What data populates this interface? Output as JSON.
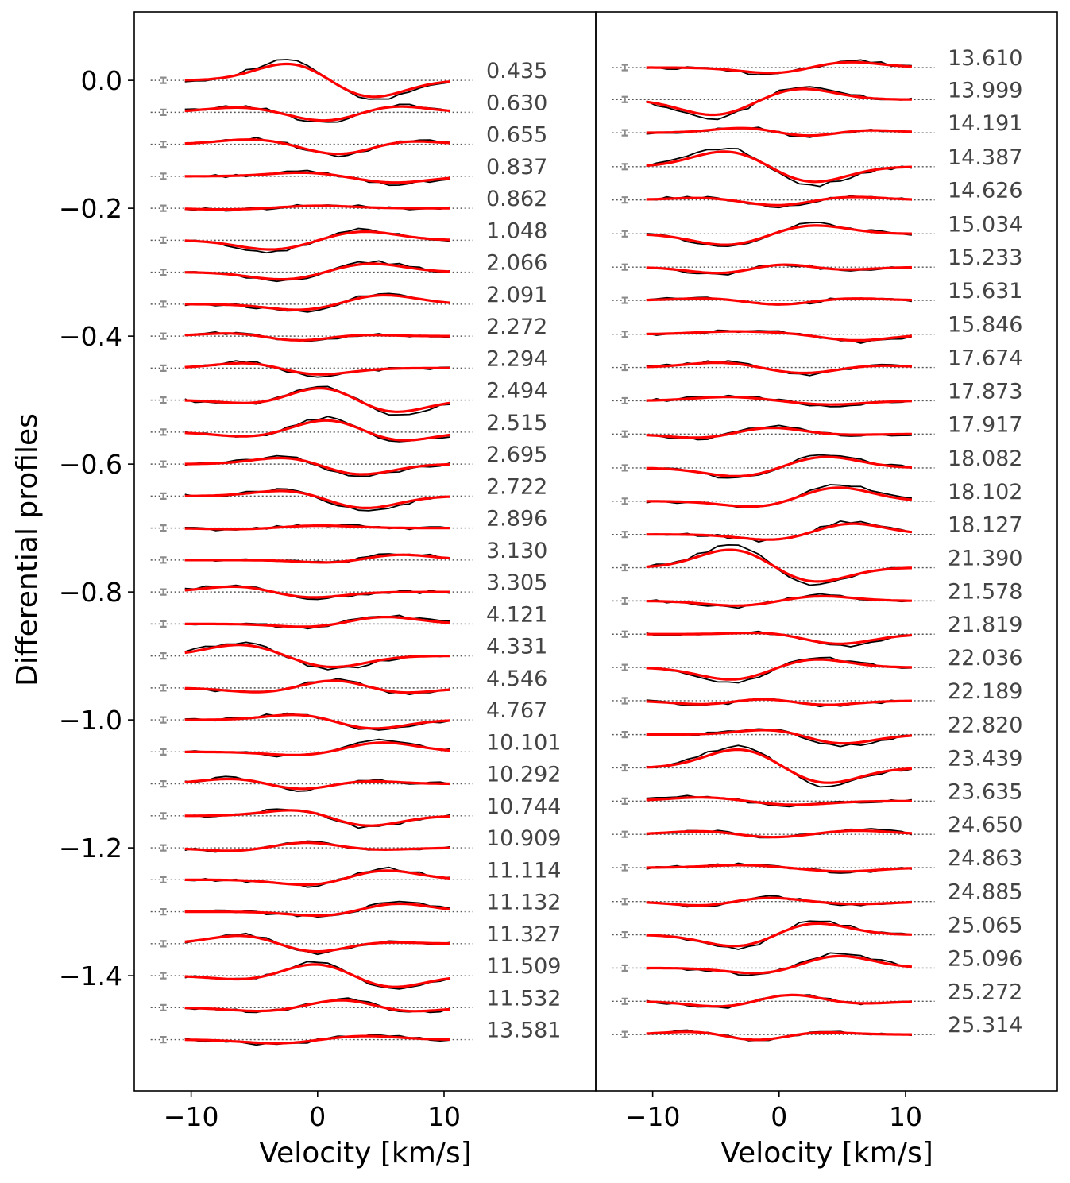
{
  "chart_data": {
    "type": "line",
    "ylabel": "Differential profiles",
    "xlabel": "Velocity [km/s]",
    "xlim": [
      -14.5,
      22
    ],
    "ylim": [
      -1.58,
      0.107
    ],
    "xticks": [
      -10,
      0,
      10
    ],
    "xtick_labels": [
      "−10",
      "0",
      "10"
    ],
    "yticks": [
      0.0,
      -0.2,
      -0.4,
      -0.6,
      -0.8,
      -1.0,
      -1.2,
      -1.4
    ],
    "ytick_labels": [
      "0.0",
      "−0.2",
      "−0.4",
      "−0.6",
      "−0.8",
      "−1.0",
      "−1.2",
      "−1.4"
    ],
    "offset_step": -0.05,
    "velocity_range": [
      -10.5,
      10.5
    ],
    "series_colors": {
      "observed": "#000000",
      "model": "#ff0000",
      "baseline": "#555555",
      "errorbar": "#8c8c8c"
    },
    "model_params": {
      "gaussian_width_kms": 2.8
    },
    "panels": [
      {
        "name": "left",
        "rows": [
          {
            "phase": "0.435",
            "offset": 0.0,
            "model": [
              -2,
              0.028,
              4,
              -0.028
            ]
          },
          {
            "phase": "0.630",
            "offset": -0.05,
            "model": [
              -6,
              0.008,
              1,
              -0.016,
              5.5,
              0.012
            ]
          },
          {
            "phase": "0.655",
            "offset": -0.1,
            "model": [
              -5,
              0.008,
              2,
              -0.018,
              6,
              0.008
            ]
          },
          {
            "phase": "0.837",
            "offset": -0.15,
            "model": [
              -1,
              0.006,
              6,
              -0.01
            ]
          },
          {
            "phase": "0.862",
            "offset": -0.2,
            "model": [
              -7,
              -0.002,
              0,
              0.004
            ]
          },
          {
            "phase": "1.048",
            "offset": -0.25,
            "model": [
              -3.5,
              -0.015,
              3.5,
              0.014
            ]
          },
          {
            "phase": "2.066",
            "offset": -0.3,
            "model": [
              -2.5,
              -0.012,
              4,
              0.014
            ]
          },
          {
            "phase": "2.091",
            "offset": -0.35,
            "model": [
              -1,
              -0.01,
              5,
              0.015
            ]
          },
          {
            "phase": "2.272",
            "offset": -0.4,
            "model": [
              -6,
              0.006,
              -1.5,
              -0.01,
              2,
              0.004
            ]
          },
          {
            "phase": "2.294",
            "offset": -0.45,
            "model": [
              -5,
              0.01,
              -0.5,
              -0.012
            ]
          },
          {
            "phase": "2.494",
            "offset": -0.5,
            "model": [
              -4,
              -0.008,
              0.5,
              0.025,
              5.5,
              -0.022
            ]
          },
          {
            "phase": "2.515",
            "offset": -0.55,
            "model": [
              -5,
              -0.008,
              1,
              0.022,
              6,
              -0.016
            ]
          },
          {
            "phase": "2.695",
            "offset": -0.6,
            "model": [
              -2,
              0.012,
              3,
              -0.018
            ]
          },
          {
            "phase": "2.722",
            "offset": -0.65,
            "model": [
              -2,
              0.01,
              3.5,
              -0.02
            ]
          },
          {
            "phase": "2.896",
            "offset": -0.7,
            "model": [
              -6,
              -0.002,
              0,
              0.004
            ]
          },
          {
            "phase": "3.130",
            "offset": -0.75,
            "model": [
              2,
              -0.006,
              6,
              0.01
            ]
          },
          {
            "phase": "3.305",
            "offset": -0.8,
            "model": [
              -6,
              0.01,
              -1,
              -0.01
            ]
          },
          {
            "phase": "4.121",
            "offset": -0.85,
            "model": [
              0,
              -0.006,
              5,
              0.012
            ]
          },
          {
            "phase": "4.331",
            "offset": -0.9,
            "model": [
              -6,
              0.018,
              1,
              -0.018
            ]
          },
          {
            "phase": "4.546",
            "offset": -0.95,
            "model": [
              -4,
              -0.008,
              1.5,
              0.015,
              6,
              -0.01
            ]
          },
          {
            "phase": "4.767",
            "offset": -1.0,
            "model": [
              -1,
              0.01,
              4,
              -0.015
            ]
          },
          {
            "phase": "10.101",
            "offset": -1.05,
            "model": [
              -1,
              -0.006,
              5,
              0.015
            ]
          },
          {
            "phase": "10.292",
            "offset": -1.1,
            "model": [
              -6,
              0.01,
              -1.5,
              -0.012,
              3,
              0.006
            ]
          },
          {
            "phase": "10.744",
            "offset": -1.15,
            "model": [
              -1,
              0.012,
              3.5,
              -0.018
            ]
          },
          {
            "phase": "10.909",
            "offset": -1.2,
            "model": [
              -6,
              -0.006,
              -1,
              0.01,
              4,
              -0.004
            ]
          },
          {
            "phase": "11.114",
            "offset": -1.25,
            "model": [
              0,
              -0.01,
              5,
              0.016
            ]
          },
          {
            "phase": "11.132",
            "offset": -1.3,
            "model": [
              1,
              -0.008,
              6,
              0.014
            ]
          },
          {
            "phase": "11.327",
            "offset": -1.35,
            "model": [
              -5.5,
              0.015,
              -0.5,
              -0.016,
              4,
              0.004
            ]
          },
          {
            "phase": "11.509",
            "offset": -1.4,
            "model": [
              -5,
              -0.008,
              0,
              0.022,
              5.5,
              -0.02
            ]
          },
          {
            "phase": "11.532",
            "offset": -1.45,
            "model": [
              -4,
              -0.006,
              2.5,
              0.016,
              6,
              -0.01
            ]
          },
          {
            "phase": "13.581",
            "offset": -1.5,
            "model": [
              -3,
              -0.006,
              3.5,
              0.006
            ]
          }
        ]
      },
      {
        "name": "right",
        "rows": [
          {
            "phase": "13.610",
            "offset": 0.02,
            "model": [
              0,
              -0.01,
              5,
              0.01
            ]
          },
          {
            "phase": "13.999",
            "offset": -0.03,
            "model": [
              -5,
              -0.025,
              1.5,
              0.018
            ]
          },
          {
            "phase": "14.191",
            "offset": -0.082,
            "model": [
              -2,
              0.01,
              2,
              -0.01,
              6,
              0.006
            ]
          },
          {
            "phase": "14.387",
            "offset": -0.135,
            "model": [
              -4,
              0.025,
              2.5,
              -0.025
            ]
          },
          {
            "phase": "14.626",
            "offset": -0.187,
            "model": [
              -5.5,
              0.004,
              0,
              -0.01,
              5,
              0.006
            ]
          },
          {
            "phase": "15.034",
            "offset": -0.24,
            "model": [
              -4,
              -0.018,
              2.5,
              0.014
            ]
          },
          {
            "phase": "15.233",
            "offset": -0.292,
            "model": [
              -4,
              -0.012,
              0,
              0.01,
              4,
              -0.006
            ]
          },
          {
            "phase": "15.631",
            "offset": -0.344,
            "model": [
              -5,
              0.004,
              0,
              -0.008,
              5,
              0.004
            ]
          },
          {
            "phase": "15.846",
            "offset": -0.397,
            "model": [
              -4,
              0.004,
              1,
              0.002,
              6,
              -0.01
            ]
          },
          {
            "phase": "17.674",
            "offset": -0.449,
            "model": [
              -4.5,
              0.008,
              2,
              -0.01,
              7,
              0.004
            ]
          },
          {
            "phase": "17.873",
            "offset": -0.501,
            "model": [
              -4,
              0.006,
              4,
              -0.006
            ]
          },
          {
            "phase": "17.917",
            "offset": -0.553,
            "model": [
              -5.5,
              -0.008,
              -1,
              0.012,
              4,
              -0.002
            ]
          },
          {
            "phase": "18.082",
            "offset": -0.606,
            "model": [
              -3,
              -0.014,
              3.5,
              0.018
            ]
          },
          {
            "phase": "18.102",
            "offset": -0.658,
            "model": [
              -1.5,
              -0.01,
              4.5,
              0.022
            ]
          },
          {
            "phase": "18.127",
            "offset": -0.71,
            "model": [
              0,
              -0.01,
              5.5,
              0.018
            ]
          },
          {
            "phase": "21.390",
            "offset": -0.762,
            "model": [
              -3.5,
              0.03,
              2.5,
              -0.024
            ]
          },
          {
            "phase": "21.578",
            "offset": -0.814,
            "model": [
              -3,
              -0.008,
              3,
              0.008
            ]
          },
          {
            "phase": "21.819",
            "offset": -0.866,
            "model": [
              0,
              0.004,
              4.5,
              -0.016
            ]
          },
          {
            "phase": "22.036",
            "offset": -0.918,
            "model": [
              -3.5,
              -0.02,
              2.5,
              0.014
            ]
          },
          {
            "phase": "22.189",
            "offset": -0.97,
            "model": [
              -5,
              -0.008,
              -1.5,
              0.008,
              3,
              -0.008
            ]
          },
          {
            "phase": "22.820",
            "offset": -1.023,
            "model": [
              0,
              0.01,
              4.5,
              -0.016
            ]
          },
          {
            "phase": "23.439",
            "offset": -1.075,
            "model": [
              -3,
              0.03,
              3.5,
              -0.025
            ]
          },
          {
            "phase": "23.635",
            "offset": -1.127,
            "model": [
              -6,
              0.006,
              1,
              -0.006
            ]
          },
          {
            "phase": "24.650",
            "offset": -1.179,
            "model": [
              -5.5,
              0.006,
              -1,
              -0.006,
              6,
              0.006
            ]
          },
          {
            "phase": "24.863",
            "offset": -1.231,
            "model": [
              -3,
              0.004,
              5,
              -0.006
            ]
          },
          {
            "phase": "24.885",
            "offset": -1.284,
            "model": [
              -5,
              -0.01,
              -2,
              0.01,
              6,
              -0.004
            ]
          },
          {
            "phase": "25.065",
            "offset": -1.336,
            "model": [
              -3,
              -0.02,
              2.5,
              0.02
            ]
          },
          {
            "phase": "25.096",
            "offset": -1.388,
            "model": [
              -1,
              -0.01,
              4.5,
              0.02
            ]
          },
          {
            "phase": "25.272",
            "offset": -1.44,
            "model": [
              -4,
              -0.01,
              1,
              0.014,
              5,
              -0.006
            ]
          },
          {
            "phase": "25.314",
            "offset": -1.492,
            "model": [
              -5.5,
              0.008,
              -2,
              -0.014,
              2,
              0.006
            ]
          }
        ]
      }
    ]
  }
}
